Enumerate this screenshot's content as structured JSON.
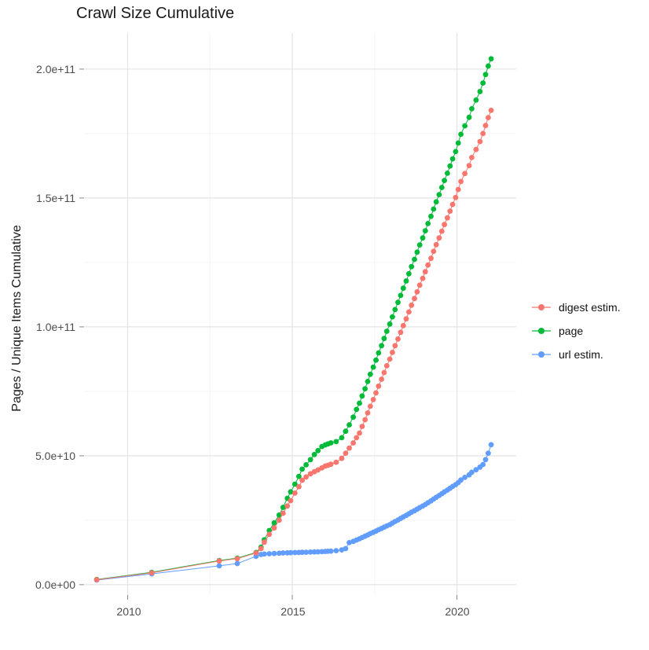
{
  "colors": {
    "background": "#FFFFFF",
    "grid_major": "#E4E4E4",
    "grid_minor": "#F2F2F2",
    "tick": "#888888",
    "axis_text": "#4D4D4D",
    "title_text": "#1A1A1A",
    "series_digest": "#F8766D",
    "series_page": "#00BA38",
    "series_url": "#619CFF"
  },
  "chart_data": {
    "type": "line",
    "title": "Crawl Size Cumulative",
    "xlabel": "",
    "ylabel": "Pages / Unique Items Cumulative",
    "grid": true,
    "legend_position": "right",
    "marker": "point",
    "x_range": [
      2008.7,
      2021.8
    ],
    "y_range": [
      -4000000000.0,
      214000000000.0
    ],
    "x_tick_labels": [
      "2010",
      "2015",
      "2020"
    ],
    "x_major_ticks": [
      2010,
      2015,
      2020
    ],
    "x_minor_gridlines": [
      2012.5,
      2017.5
    ],
    "y_tick_labels": [
      "0.0e+00",
      "5.0e+10",
      "1.0e+11",
      "1.5e+11",
      "2.0e+11"
    ],
    "y_major_ticks": [
      0,
      50000000000.0,
      100000000000.0,
      150000000000.0,
      200000000000.0
    ],
    "y_minor_gridlines": [
      25000000000.0,
      75000000000.0,
      125000000000.0,
      175000000000.0
    ],
    "draw_order": [
      1,
      2,
      0
    ],
    "series": [
      {
        "name": "digest estim.",
        "color": "#F8766D",
        "points": [
          [
            2009.06,
            1900000000.0
          ],
          [
            2010.73,
            4600000000.0
          ],
          [
            2012.78,
            9200000000.0
          ],
          [
            2013.33,
            10100000000.0
          ],
          [
            2013.9,
            12300000000.0
          ],
          [
            2014.05,
            14000000000.0
          ],
          [
            2014.15,
            16500000000.0
          ],
          [
            2014.3,
            19500000000.0
          ],
          [
            2014.45,
            22000000000.0
          ],
          [
            2014.6,
            25000000000.0
          ],
          [
            2014.72,
            27700000000.0
          ],
          [
            2014.85,
            30500000000.0
          ],
          [
            2014.95,
            32600000000.0
          ],
          [
            2015.08,
            35500000000.0
          ],
          [
            2015.2,
            38000000000.0
          ],
          [
            2015.3,
            40500000000.0
          ],
          [
            2015.42,
            41800000000.0
          ],
          [
            2015.55,
            43000000000.0
          ],
          [
            2015.67,
            43800000000.0
          ],
          [
            2015.78,
            44500000000.0
          ],
          [
            2015.9,
            45300000000.0
          ],
          [
            2016.0,
            46000000000.0
          ],
          [
            2016.08,
            46300000000.0
          ],
          [
            2016.17,
            46700000000.0
          ],
          [
            2016.33,
            47500000000.0
          ],
          [
            2016.5,
            49000000000.0
          ],
          [
            2016.62,
            51000000000.0
          ],
          [
            2016.73,
            53000000000.0
          ],
          [
            2016.85,
            55000000000.0
          ],
          [
            2016.95,
            57000000000.0
          ],
          [
            2017.04,
            58800000000.0
          ],
          [
            2017.12,
            61400000000.0
          ],
          [
            2017.21,
            64000000000.0
          ],
          [
            2017.29,
            66600000000.0
          ],
          [
            2017.37,
            69200000000.0
          ],
          [
            2017.46,
            71800000000.0
          ],
          [
            2017.54,
            74400000000.0
          ],
          [
            2017.62,
            77000000000.0
          ],
          [
            2017.71,
            79700000000.0
          ],
          [
            2017.79,
            82300000000.0
          ],
          [
            2017.87,
            84900000000.0
          ],
          [
            2017.96,
            87500000000.0
          ],
          [
            2018.04,
            90100000000.0
          ],
          [
            2018.12,
            92700000000.0
          ],
          [
            2018.21,
            95300000000.0
          ],
          [
            2018.29,
            97900000000.0
          ],
          [
            2018.37,
            100500000000.0
          ],
          [
            2018.46,
            103100000000.0
          ],
          [
            2018.54,
            105800000000.0
          ],
          [
            2018.62,
            108400000000.0
          ],
          [
            2018.71,
            111000000000.0
          ],
          [
            2018.79,
            113600000000.0
          ],
          [
            2018.87,
            116200000000.0
          ],
          [
            2018.96,
            118800000000.0
          ],
          [
            2019.04,
            121400000000.0
          ],
          [
            2019.12,
            124000000000.0
          ],
          [
            2019.21,
            126600000000.0
          ],
          [
            2019.29,
            129300000000.0
          ],
          [
            2019.37,
            131900000000.0
          ],
          [
            2019.46,
            134500000000.0
          ],
          [
            2019.54,
            137100000000.0
          ],
          [
            2019.62,
            139700000000.0
          ],
          [
            2019.71,
            142300000000.0
          ],
          [
            2019.79,
            144900000000.0
          ],
          [
            2019.87,
            147500000000.0
          ],
          [
            2019.96,
            150200000000.0
          ],
          [
            2020.04,
            153300000000.0
          ],
          [
            2020.12,
            156400000000.0
          ],
          [
            2020.24,
            159500000000.0
          ],
          [
            2020.37,
            162600000000.0
          ],
          [
            2020.45,
            165700000000.0
          ],
          [
            2020.58,
            168800000000.0
          ],
          [
            2020.7,
            171900000000.0
          ],
          [
            2020.79,
            175000000000.0
          ],
          [
            2020.87,
            178100000000.0
          ],
          [
            2020.95,
            181200000000.0
          ],
          [
            2021.04,
            184000000000.0
          ]
        ]
      },
      {
        "name": "page",
        "color": "#00BA38",
        "points": [
          [
            2009.06,
            2000000000.0
          ],
          [
            2010.73,
            4800000000.0
          ],
          [
            2012.78,
            9400000000.0
          ],
          [
            2013.33,
            10300000000.0
          ],
          [
            2013.9,
            12500000000.0
          ],
          [
            2014.05,
            14500000000.0
          ],
          [
            2014.15,
            17400000000.0
          ],
          [
            2014.3,
            21000000000.0
          ],
          [
            2014.45,
            24000000000.0
          ],
          [
            2014.6,
            27000000000.0
          ],
          [
            2014.72,
            30000000000.0
          ],
          [
            2014.85,
            33500000000.0
          ],
          [
            2014.95,
            36000000000.0
          ],
          [
            2015.08,
            39000000000.0
          ],
          [
            2015.2,
            42000000000.0
          ],
          [
            2015.3,
            44800000000.0
          ],
          [
            2015.42,
            46500000000.0
          ],
          [
            2015.55,
            48500000000.0
          ],
          [
            2015.67,
            50500000000.0
          ],
          [
            2015.78,
            52000000000.0
          ],
          [
            2015.9,
            53600000000.0
          ],
          [
            2016.0,
            54200000000.0
          ],
          [
            2016.08,
            54600000000.0
          ],
          [
            2016.17,
            55000000000.0
          ],
          [
            2016.33,
            55500000000.0
          ],
          [
            2016.5,
            57000000000.0
          ],
          [
            2016.62,
            59500000000.0
          ],
          [
            2016.73,
            62000000000.0
          ],
          [
            2016.85,
            65000000000.0
          ],
          [
            2016.95,
            68000000000.0
          ],
          [
            2017.04,
            70400000000.0
          ],
          [
            2017.12,
            73200000000.0
          ],
          [
            2017.21,
            76000000000.0
          ],
          [
            2017.29,
            78800000000.0
          ],
          [
            2017.37,
            81600000000.0
          ],
          [
            2017.46,
            84400000000.0
          ],
          [
            2017.54,
            87100000000.0
          ],
          [
            2017.62,
            89900000000.0
          ],
          [
            2017.71,
            92700000000.0
          ],
          [
            2017.79,
            95500000000.0
          ],
          [
            2017.87,
            98300000000.0
          ],
          [
            2017.96,
            101100000000.0
          ],
          [
            2018.04,
            103900000000.0
          ],
          [
            2018.12,
            106700000000.0
          ],
          [
            2018.21,
            109500000000.0
          ],
          [
            2018.29,
            112200000000.0
          ],
          [
            2018.37,
            115000000000.0
          ],
          [
            2018.46,
            117800000000.0
          ],
          [
            2018.54,
            120600000000.0
          ],
          [
            2018.62,
            123400000000.0
          ],
          [
            2018.71,
            126200000000.0
          ],
          [
            2018.79,
            129000000000.0
          ],
          [
            2018.87,
            131800000000.0
          ],
          [
            2018.96,
            134500000000.0
          ],
          [
            2019.04,
            137300000000.0
          ],
          [
            2019.12,
            140100000000.0
          ],
          [
            2019.21,
            142900000000.0
          ],
          [
            2019.29,
            145700000000.0
          ],
          [
            2019.37,
            148500000000.0
          ],
          [
            2019.46,
            151300000000.0
          ],
          [
            2019.54,
            154100000000.0
          ],
          [
            2019.62,
            156800000000.0
          ],
          [
            2019.71,
            159600000000.0
          ],
          [
            2019.79,
            162400000000.0
          ],
          [
            2019.87,
            165200000000.0
          ],
          [
            2019.96,
            168000000000.0
          ],
          [
            2020.04,
            171300000000.0
          ],
          [
            2020.12,
            174700000000.0
          ],
          [
            2020.24,
            178000000000.0
          ],
          [
            2020.37,
            181300000000.0
          ],
          [
            2020.45,
            184600000000.0
          ],
          [
            2020.58,
            188000000000.0
          ],
          [
            2020.7,
            191300000000.0
          ],
          [
            2020.79,
            194600000000.0
          ],
          [
            2020.87,
            197900000000.0
          ],
          [
            2020.95,
            201200000000.0
          ],
          [
            2021.04,
            204000000000.0
          ]
        ]
      },
      {
        "name": "url estim.",
        "color": "#619CFF",
        "points": [
          [
            2009.06,
            1800000000.0
          ],
          [
            2010.73,
            4200000000.0
          ],
          [
            2012.78,
            7300000000.0
          ],
          [
            2013.33,
            8200000000.0
          ],
          [
            2013.9,
            11000000000.0
          ],
          [
            2014.05,
            11700000000.0
          ],
          [
            2014.15,
            11900000000.0
          ],
          [
            2014.3,
            12000000000.0
          ],
          [
            2014.45,
            12100000000.0
          ],
          [
            2014.6,
            12200000000.0
          ],
          [
            2014.72,
            12300000000.0
          ],
          [
            2014.85,
            12350000000.0
          ],
          [
            2014.95,
            12400000000.0
          ],
          [
            2015.08,
            12450000000.0
          ],
          [
            2015.2,
            12500000000.0
          ],
          [
            2015.3,
            12550000000.0
          ],
          [
            2015.42,
            12600000000.0
          ],
          [
            2015.55,
            12650000000.0
          ],
          [
            2015.67,
            12700000000.0
          ],
          [
            2015.78,
            12750000000.0
          ],
          [
            2015.9,
            12800000000.0
          ],
          [
            2016.0,
            12900000000.0
          ],
          [
            2016.08,
            12950000000.0
          ],
          [
            2016.17,
            13000000000.0
          ],
          [
            2016.33,
            13200000000.0
          ],
          [
            2016.5,
            13500000000.0
          ],
          [
            2016.62,
            14000000000.0
          ],
          [
            2016.73,
            16300000000.0
          ],
          [
            2016.85,
            16800000000.0
          ],
          [
            2016.95,
            17300000000.0
          ],
          [
            2017.04,
            17800000000.0
          ],
          [
            2017.12,
            18300000000.0
          ],
          [
            2017.21,
            18800000000.0
          ],
          [
            2017.29,
            19300000000.0
          ],
          [
            2017.37,
            19800000000.0
          ],
          [
            2017.46,
            20300000000.0
          ],
          [
            2017.54,
            20800000000.0
          ],
          [
            2017.62,
            21300000000.0
          ],
          [
            2017.71,
            21800000000.0
          ],
          [
            2017.79,
            22300000000.0
          ],
          [
            2017.87,
            22800000000.0
          ],
          [
            2017.96,
            23300000000.0
          ],
          [
            2018.04,
            23900000000.0
          ],
          [
            2018.12,
            24500000000.0
          ],
          [
            2018.21,
            25100000000.0
          ],
          [
            2018.29,
            25700000000.0
          ],
          [
            2018.37,
            26300000000.0
          ],
          [
            2018.46,
            26900000000.0
          ],
          [
            2018.54,
            27500000000.0
          ],
          [
            2018.62,
            28100000000.0
          ],
          [
            2018.71,
            28700000000.0
          ],
          [
            2018.79,
            29300000000.0
          ],
          [
            2018.87,
            29900000000.0
          ],
          [
            2018.96,
            30500000000.0
          ],
          [
            2019.04,
            31100000000.0
          ],
          [
            2019.12,
            31800000000.0
          ],
          [
            2019.21,
            32500000000.0
          ],
          [
            2019.29,
            33200000000.0
          ],
          [
            2019.37,
            33900000000.0
          ],
          [
            2019.46,
            34600000000.0
          ],
          [
            2019.54,
            35300000000.0
          ],
          [
            2019.62,
            36000000000.0
          ],
          [
            2019.71,
            36700000000.0
          ],
          [
            2019.79,
            37400000000.0
          ],
          [
            2019.87,
            38100000000.0
          ],
          [
            2019.96,
            38800000000.0
          ],
          [
            2020.04,
            39600000000.0
          ],
          [
            2020.12,
            40600000000.0
          ],
          [
            2020.24,
            41600000000.0
          ],
          [
            2020.37,
            42600000000.0
          ],
          [
            2020.45,
            43600000000.0
          ],
          [
            2020.58,
            44600000000.0
          ],
          [
            2020.7,
            45600000000.0
          ],
          [
            2020.79,
            46600000000.0
          ],
          [
            2020.87,
            48500000000.0
          ],
          [
            2020.95,
            51000000000.0
          ],
          [
            2021.04,
            54300000000.0
          ]
        ]
      }
    ]
  }
}
